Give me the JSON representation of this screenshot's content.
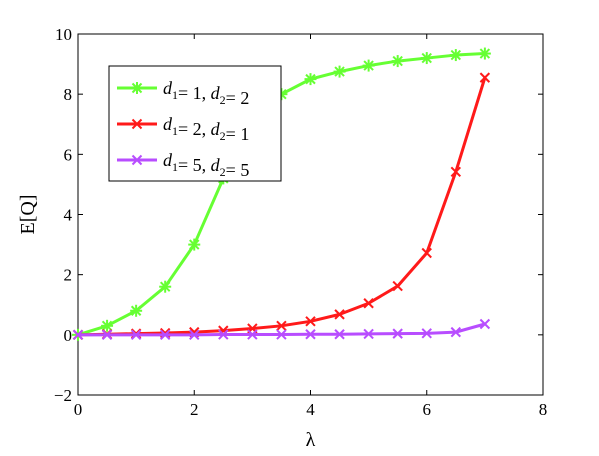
{
  "chart_data": {
    "type": "line",
    "title": "",
    "xlabel": "λ",
    "ylabel": "E[Q]",
    "xlim": [
      0,
      8
    ],
    "ylim": [
      -2,
      10
    ],
    "xticks": [
      0,
      2,
      4,
      6,
      8
    ],
    "yticks": [
      -2,
      0,
      2,
      4,
      6,
      8,
      10
    ],
    "grid": false,
    "legend_position": "top-left",
    "x": [
      0,
      0.5,
      1,
      1.5,
      2,
      2.5,
      3,
      3.5,
      4,
      4.5,
      5,
      5.5,
      6,
      6.5,
      7
    ],
    "series": [
      {
        "name": "d1= 1, d2= 2",
        "legend_parts": {
          "a": "1",
          "b": "2"
        },
        "color": "#66ff33",
        "marker": "asterisk",
        "values": [
          0.0,
          0.3,
          0.8,
          1.6,
          3.0,
          5.2,
          6.9,
          8.0,
          8.5,
          8.75,
          8.95,
          9.1,
          9.2,
          9.3,
          9.35
        ]
      },
      {
        "name": "d1= 2, d2= 1",
        "legend_parts": {
          "a": "2",
          "b": "1"
        },
        "color": "#ff1a1a",
        "marker": "x",
        "values": [
          0.0,
          0.02,
          0.04,
          0.06,
          0.09,
          0.14,
          0.21,
          0.3,
          0.45,
          0.68,
          1.05,
          1.62,
          2.72,
          5.42,
          8.55
        ]
      },
      {
        "name": "d1= 5, d2= 5",
        "legend_parts": {
          "a": "5",
          "b": "5"
        },
        "color": "#b84dff",
        "marker": "x",
        "values": [
          0.0,
          0.0,
          0.0,
          0.0,
          0.0,
          0.01,
          0.01,
          0.01,
          0.02,
          0.02,
          0.03,
          0.04,
          0.05,
          0.09,
          0.36
        ]
      }
    ]
  }
}
